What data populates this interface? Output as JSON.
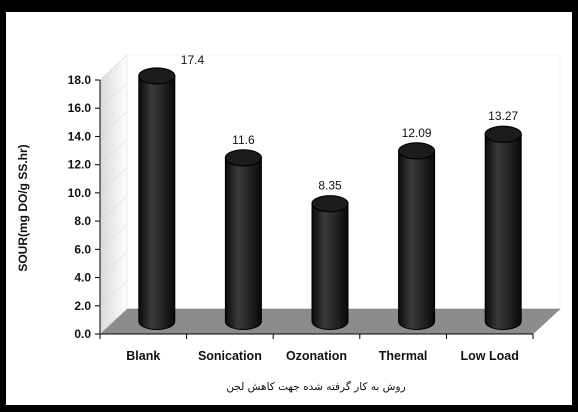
{
  "chart_data": {
    "type": "bar",
    "categories": [
      "Blank",
      "Sonication",
      "Ozonation",
      "Thermal",
      "Low Load"
    ],
    "values": [
      17.4,
      11.6,
      8.35,
      12.09,
      13.27
    ],
    "data_labels": [
      "17.4",
      "11.6",
      "8.35",
      "12.09",
      "13.27"
    ],
    "ylabel": "SOUR(mg DO/g SS.hr)",
    "xlabel": "روش به کار گرفته شده جهت کاهش لجن",
    "ylim": [
      0,
      18
    ],
    "yticks": [
      "0.0",
      "2.0",
      "4.0",
      "6.0",
      "8.0",
      "10.0",
      "12.0",
      "14.0",
      "16.0",
      "18.0"
    ],
    "bar_style": "3d-cylinder",
    "bar_color": "#262626",
    "floor_color": "#8c8c8c",
    "wall_color": "#ffffff",
    "grid": false,
    "legend": "none"
  }
}
